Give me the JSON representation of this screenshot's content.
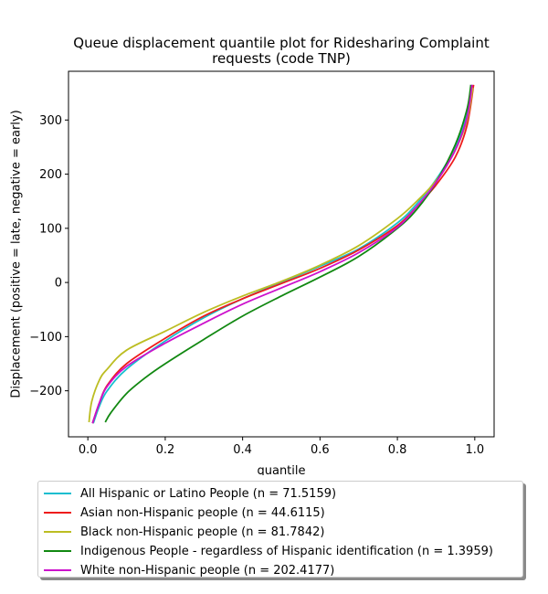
{
  "chart_data": {
    "type": "line",
    "title": "Queue displacement quantile plot for Ridesharing Complaint requests (code TNP)",
    "title_lines": [
      "Queue displacement quantile plot for Ridesharing Complaint",
      "requests (code TNP)"
    ],
    "xlabel": "quantile",
    "ylabel": "Displacement (positive = late, negative = early)",
    "xlim": [
      -0.05,
      1.05
    ],
    "ylim": [
      -285,
      390
    ],
    "xticks": [
      0.0,
      0.2,
      0.4,
      0.6,
      0.8,
      1.0
    ],
    "xtick_labels": [
      "0.0",
      "0.2",
      "0.4",
      "0.6",
      "0.8",
      "1.0"
    ],
    "yticks": [
      -200,
      -100,
      0,
      100,
      200,
      300
    ],
    "ytick_labels": [
      "−200",
      "−100",
      "0",
      "100",
      "200",
      "300"
    ],
    "grid": false,
    "legend_position": "below",
    "series": [
      {
        "name": "All Hispanic or Latino People (n = 71.5159)",
        "color": "#17becf",
        "x": [
          0.014,
          0.03,
          0.05,
          0.1,
          0.2,
          0.3,
          0.4,
          0.5,
          0.6,
          0.7,
          0.8,
          0.85,
          0.9,
          0.95,
          0.98,
          0.993
        ],
        "y": [
          -260,
          -228,
          -200,
          -160,
          -108,
          -65,
          -30,
          0,
          30,
          62,
          110,
          145,
          190,
          250,
          310,
          365
        ]
      },
      {
        "name": "Asian non-Hispanic people (n = 44.6115)",
        "color": "#ee1c1c",
        "x": [
          0.012,
          0.03,
          0.05,
          0.1,
          0.2,
          0.3,
          0.4,
          0.5,
          0.6,
          0.7,
          0.8,
          0.85,
          0.9,
          0.95,
          0.98,
          0.997
        ],
        "y": [
          -260,
          -222,
          -190,
          -150,
          -103,
          -62,
          -30,
          -2,
          26,
          60,
          105,
          140,
          180,
          232,
          290,
          365
        ]
      },
      {
        "name": "Black non-Hispanic people (n = 81.7842)",
        "color": "#bcbd22",
        "x": [
          0.003,
          0.01,
          0.03,
          0.05,
          0.1,
          0.2,
          0.3,
          0.4,
          0.5,
          0.6,
          0.7,
          0.8,
          0.85,
          0.9,
          0.95,
          0.98,
          0.995
        ],
        "y": [
          -258,
          -220,
          -180,
          -160,
          -125,
          -90,
          -55,
          -25,
          2,
          32,
          68,
          118,
          150,
          188,
          245,
          300,
          360
        ]
      },
      {
        "name": "Indigenous People - regardless of Hispanic identification (n = 1.3959)",
        "color": "#118811",
        "x": [
          0.045,
          0.06,
          0.1,
          0.15,
          0.2,
          0.3,
          0.4,
          0.5,
          0.6,
          0.7,
          0.8,
          0.85,
          0.9,
          0.95,
          0.98,
          0.99
        ],
        "y": [
          -258,
          -240,
          -205,
          -175,
          -150,
          -105,
          -62,
          -25,
          10,
          48,
          100,
          135,
          185,
          255,
          320,
          365
        ]
      },
      {
        "name": "White non-Hispanic people (n = 202.4177)",
        "color": "#cc11cc",
        "x": [
          0.012,
          0.03,
          0.05,
          0.1,
          0.2,
          0.3,
          0.4,
          0.5,
          0.6,
          0.7,
          0.8,
          0.85,
          0.9,
          0.95,
          0.98,
          0.993
        ],
        "y": [
          -260,
          -222,
          -192,
          -155,
          -112,
          -75,
          -40,
          -10,
          20,
          55,
          102,
          140,
          185,
          245,
          305,
          365
        ]
      }
    ]
  }
}
